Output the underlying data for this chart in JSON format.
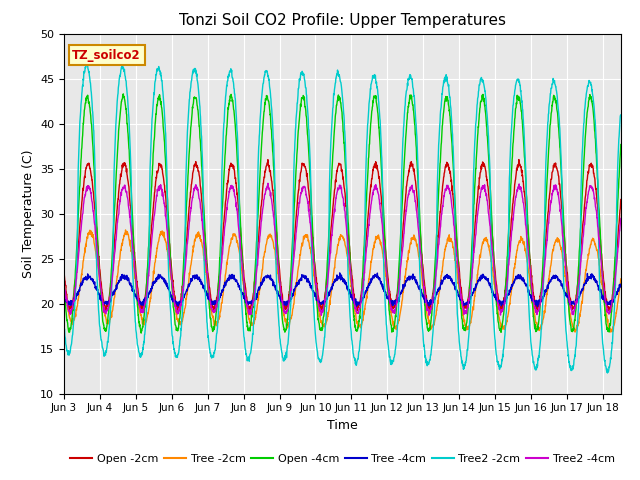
{
  "title": "Tonzi Soil CO2 Profile: Upper Temperatures",
  "xlabel": "Time",
  "ylabel": "Soil Temperature (C)",
  "ylim": [
    10,
    50
  ],
  "label_box_text": "TZ_soilco2",
  "series_names": [
    "Open -2cm",
    "Tree -2cm",
    "Open -4cm",
    "Tree -4cm",
    "Tree2 -2cm",
    "Tree2 -4cm"
  ],
  "series_colors": [
    "#cc0000",
    "#ff8800",
    "#00cc00",
    "#0000cc",
    "#00cccc",
    "#cc00cc"
  ],
  "tick_labels": [
    "Jun 3",
    "Jun 4",
    "Jun 5",
    "Jun 6",
    "Jun 7",
    "Jun 8",
    "Jun 9",
    "Jun 10",
    "Jun 11",
    "Jun 12",
    "Jun 13",
    "Jun 14",
    "Jun 15",
    "Jun 16",
    "Jun 17",
    "Jun 18"
  ],
  "tick_positions": [
    0,
    1,
    2,
    3,
    4,
    5,
    6,
    7,
    8,
    9,
    10,
    11,
    12,
    13,
    14,
    15
  ],
  "background_color": "#e8e8e8",
  "title_fontsize": 11,
  "axis_label_fontsize": 9,
  "legend_fontsize": 8,
  "yticks": [
    10,
    15,
    20,
    25,
    30,
    35,
    40,
    45,
    50
  ],
  "figsize": [
    6.4,
    4.8
  ],
  "dpi": 100
}
